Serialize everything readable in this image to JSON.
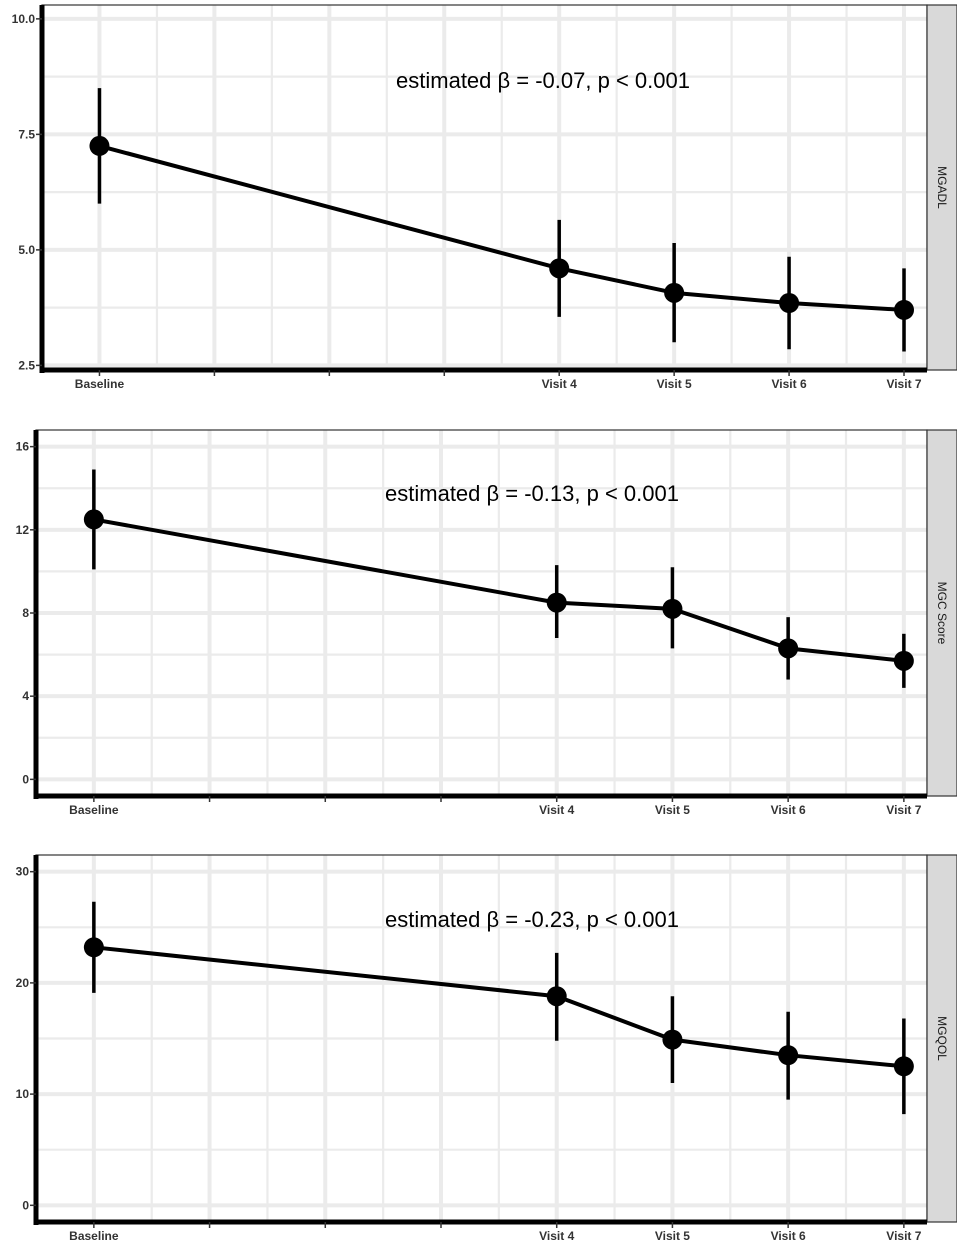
{
  "chart_data": [
    {
      "type": "line",
      "facet_label": "MGADL",
      "annotation": "estimated β = -0.07, p < 0.001",
      "x_positions": [
        0,
        4,
        5,
        6,
        7
      ],
      "x_tick_labels": [
        "Baseline",
        "Visit 4",
        "Visit 5",
        "Visit 6",
        "Visit 7"
      ],
      "y": [
        7.25,
        4.6,
        4.07,
        3.85,
        3.7
      ],
      "y_lower": [
        6.0,
        3.55,
        3.0,
        2.85,
        2.8
      ],
      "y_upper": [
        8.5,
        5.65,
        5.15,
        4.85,
        4.6
      ],
      "y_ticks": [
        2.5,
        5.0,
        7.5,
        10.0
      ],
      "y_tick_labels": [
        "2.5",
        "5.0",
        "7.5",
        "10.0"
      ],
      "ylim": [
        2.4,
        10.3
      ],
      "grid": true
    },
    {
      "type": "line",
      "facet_label": "MGC Score",
      "annotation": "estimated β = -0.13, p < 0.001",
      "x_positions": [
        0,
        4,
        5,
        6,
        7
      ],
      "x_tick_labels": [
        "Baseline",
        "Visit 4",
        "Visit 5",
        "Visit 6",
        "Visit 7"
      ],
      "y": [
        12.5,
        8.5,
        8.2,
        6.3,
        5.7
      ],
      "y_lower": [
        10.1,
        6.8,
        6.3,
        4.8,
        4.4
      ],
      "y_upper": [
        14.9,
        10.3,
        10.2,
        7.8,
        7.0
      ],
      "y_ticks": [
        0,
        4,
        8,
        12,
        16
      ],
      "y_tick_labels": [
        "0",
        "4",
        "8",
        "12",
        "16"
      ],
      "ylim": [
        -0.8,
        16.8
      ],
      "grid": true
    },
    {
      "type": "line",
      "facet_label": "MGQOL",
      "annotation": "estimated β = -0.23, p < 0.001",
      "x_positions": [
        0,
        4,
        5,
        6,
        7
      ],
      "x_tick_labels": [
        "Baseline",
        "Visit 4",
        "Visit 5",
        "Visit 6",
        "Visit 7"
      ],
      "y": [
        23.2,
        18.8,
        14.9,
        13.5,
        12.5
      ],
      "y_lower": [
        19.1,
        14.8,
        11.0,
        9.5,
        8.2
      ],
      "y_upper": [
        27.3,
        22.7,
        18.8,
        17.4,
        16.8
      ],
      "y_ticks": [
        0,
        10,
        20,
        30
      ],
      "y_tick_labels": [
        "0",
        "10",
        "20",
        "30"
      ],
      "ylim": [
        -1.5,
        31.5
      ],
      "grid": true
    }
  ],
  "colors": {
    "line": "#000000",
    "grid": "#ebebeb",
    "strip": "#d9d9d9",
    "panel_border": "#333333",
    "axis": "#000000"
  }
}
